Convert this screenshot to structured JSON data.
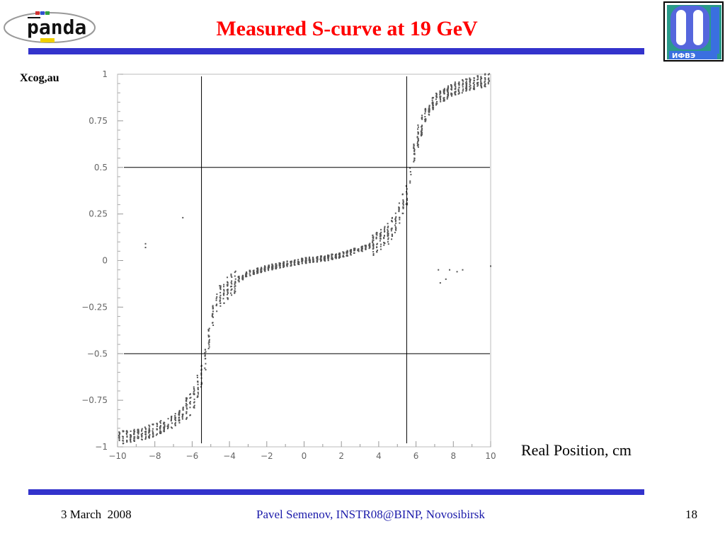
{
  "slide": {
    "title": "Measured S-curve at 19 GeV",
    "y_axis_label": "Xcog,au",
    "x_axis_label": "Real Position, cm",
    "footer": {
      "date": "3 March  2008",
      "center": "Pavel Semenov, INSTR08@BINP, Novosibirsk",
      "page": "18"
    },
    "logos": {
      "left": "panda",
      "right": "IHEP / ИФВЭ"
    }
  },
  "colors": {
    "title": "#ff0000",
    "rule": "#3333cc",
    "footer_center": "#1a1aaa",
    "markers": "#555555"
  },
  "chart_data": {
    "type": "scatter",
    "xlim": [
      -10,
      10
    ],
    "ylim": [
      -1,
      1
    ],
    "x_ticks": [
      -10,
      -8,
      -6,
      -4,
      -2,
      0,
      2,
      4,
      6,
      8,
      10
    ],
    "y_ticks": [
      1,
      0.75,
      0.5,
      0.25,
      0,
      -0.25,
      -0.5,
      -0.75,
      -1
    ],
    "x_tick_labels": [
      "−10",
      "−8",
      "−6",
      "−4",
      "−2",
      "0",
      "2",
      "4",
      "6",
      "8",
      "10"
    ],
    "y_tick_labels": [
      "1",
      "0.75",
      "0.5",
      "0.25",
      "0",
      "−0.25",
      "−0.5",
      "−0.75",
      "−1"
    ],
    "grid": false,
    "reference_lines": {
      "vertical_x": [
        -5.5,
        5.5
      ],
      "horizontal_y": [
        0.5,
        -0.5
      ]
    },
    "curve_points": [
      [
        -9.8,
        -0.95
      ],
      [
        -9.0,
        -0.94
      ],
      [
        -8.0,
        -0.91
      ],
      [
        -7.0,
        -0.86
      ],
      [
        -6.5,
        -0.82
      ],
      [
        -6.0,
        -0.76
      ],
      [
        -5.5,
        -0.62
      ],
      [
        -5.2,
        -0.48
      ],
      [
        -5.0,
        -0.36
      ],
      [
        -4.8,
        -0.24
      ],
      [
        -4.5,
        -0.19
      ],
      [
        -4.0,
        -0.14
      ],
      [
        -3.5,
        -0.1
      ],
      [
        -3.0,
        -0.07
      ],
      [
        -2.0,
        -0.04
      ],
      [
        -1.0,
        -0.02
      ],
      [
        0.0,
        0.0
      ],
      [
        1.0,
        0.01
      ],
      [
        2.0,
        0.03
      ],
      [
        3.0,
        0.06
      ],
      [
        4.0,
        0.1
      ],
      [
        4.5,
        0.14
      ],
      [
        5.0,
        0.22
      ],
      [
        5.5,
        0.36
      ],
      [
        5.8,
        0.5
      ],
      [
        6.0,
        0.64
      ],
      [
        6.5,
        0.78
      ],
      [
        7.0,
        0.86
      ],
      [
        8.0,
        0.92
      ],
      [
        9.0,
        0.95
      ],
      [
        9.8,
        0.97
      ]
    ],
    "outliers": [
      [
        -8.5,
        0.09
      ],
      [
        -8.5,
        0.07
      ],
      [
        -6.5,
        0.23
      ],
      [
        7.2,
        -0.05
      ],
      [
        7.8,
        -0.05
      ],
      [
        8.2,
        -0.06
      ],
      [
        7.3,
        -0.12
      ],
      [
        7.6,
        -0.1
      ],
      [
        8.5,
        -0.05
      ],
      [
        10.0,
        -0.03
      ]
    ]
  }
}
